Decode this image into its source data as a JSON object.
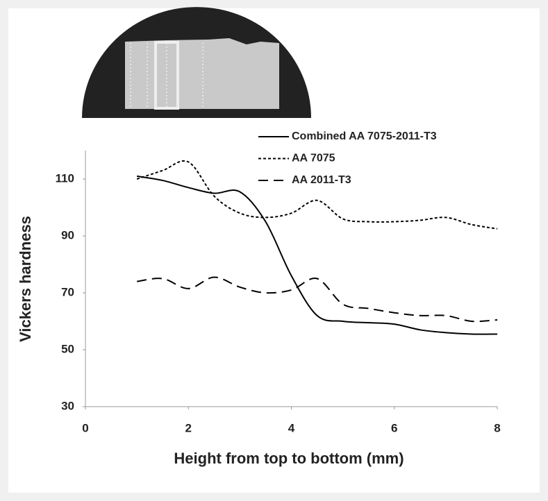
{
  "chart_data": {
    "type": "line",
    "x_label": "Height from top to bottom (mm)",
    "y_label": "Vickers hardness",
    "x": [
      1,
      1.5,
      2,
      2.5,
      3,
      3.5,
      4,
      4.5,
      5,
      5.5,
      6,
      6.5,
      7,
      7.5,
      8
    ],
    "series": [
      {
        "name": "Combined AA 7075-2011-T3",
        "color": "#000000",
        "dash": "solid",
        "values": [
          111,
          109.5,
          107,
          105,
          105.5,
          95,
          76,
          62,
          60,
          59.5,
          59,
          57,
          56,
          55.5,
          55.5
        ]
      },
      {
        "name": "AA 7075",
        "color": "#000000",
        "dash": "dotted",
        "values": [
          110,
          113,
          116,
          104,
          98,
          96.5,
          98,
          102.5,
          96,
          95,
          95,
          95.5,
          96.5,
          94,
          92.5
        ]
      },
      {
        "name": "AA 2011-T3",
        "color": "#000000",
        "dash": "dashed",
        "values": [
          74,
          75,
          71.5,
          75.5,
          72,
          70,
          71,
          75,
          66,
          64.5,
          63,
          62,
          62,
          60,
          60.5
        ]
      }
    ],
    "xlim": [
      0,
      8
    ],
    "xticks": [
      0,
      2,
      4,
      6,
      8
    ],
    "ylim": [
      30,
      120
    ],
    "yticks": [
      30,
      50,
      70,
      90,
      110
    ]
  }
}
